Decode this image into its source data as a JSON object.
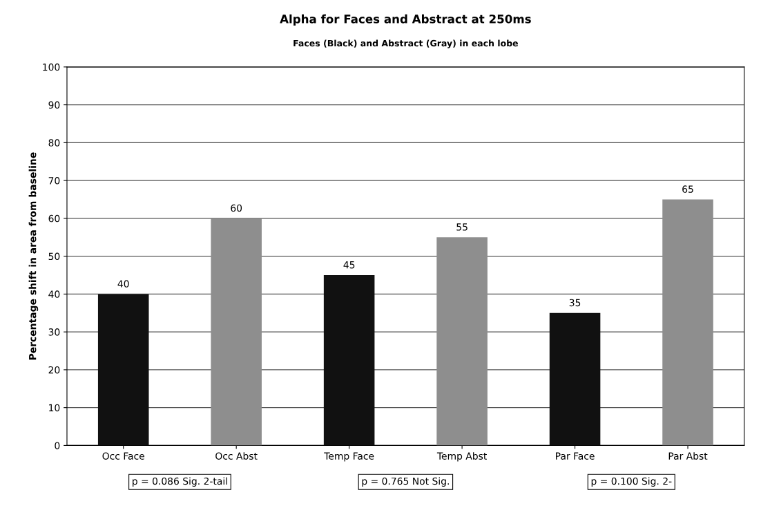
{
  "chart_data": {
    "type": "bar",
    "title": "Alpha for Faces and Abstract at 250ms",
    "subtitle": "Faces (Black) and Abstract (Gray) in each lobe",
    "ylabel": "Percentage shift in area from baseline",
    "categories": [
      "Occ Face",
      "Occ Abst",
      "Temp Face",
      "Temp Abst",
      "Par Face",
      "Par Abst"
    ],
    "values": [
      40,
      60,
      45,
      55,
      35,
      65
    ],
    "colors": [
      "#111111",
      "#8e8e8e",
      "#111111",
      "#8e8e8e",
      "#111111",
      "#8e8e8e"
    ],
    "ylim": [
      0,
      100
    ],
    "yticks": [
      0,
      10,
      20,
      30,
      40,
      50,
      60,
      70,
      80,
      90,
      100
    ],
    "grid": "y",
    "data_labels": true,
    "annotations": [
      "p = 0.086 Sig. 2-tail",
      "p = 0.765 Not Sig.",
      "p = 0.100 Sig. 2-"
    ]
  }
}
